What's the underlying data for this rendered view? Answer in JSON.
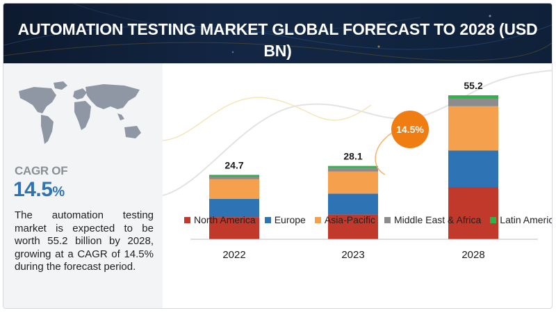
{
  "header": {
    "title": "AUTOMATION TESTING MARKET GLOBAL FORECAST TO 2028 (USD BN)"
  },
  "sidebar": {
    "cagr_label": "CAGR OF",
    "cagr_value": "14.5",
    "cagr_unit": "%",
    "summary": "The automation testing market is expected to be worth 55.2 billion by 2028, growing at a CAGR of 14.5% during the forecast period."
  },
  "chart_data": {
    "type": "bar",
    "stacked": true,
    "categories": [
      "2022",
      "2023",
      "2028"
    ],
    "totals": [
      "24.7",
      "28.1",
      "55.2"
    ],
    "series": [
      {
        "name": "North America",
        "color": "#c0392b",
        "values": [
          8.5,
          9.5,
          20.0
        ]
      },
      {
        "name": "Europe",
        "color": "#2e74b5",
        "values": [
          7.0,
          8.0,
          14.0
        ]
      },
      {
        "name": "Asia-Pacific",
        "color": "#f4a04d",
        "values": [
          7.5,
          8.5,
          17.0
        ]
      },
      {
        "name": "Middle East & Africa",
        "color": "#8c8c8c",
        "values": [
          1.0,
          1.3,
          3.0
        ]
      },
      {
        "name": "Latin America",
        "color": "#2db34a",
        "values": [
          0.7,
          0.8,
          1.2
        ]
      }
    ],
    "annotation": {
      "text": "14.5%",
      "color": "#f07d12"
    },
    "ylim": [
      0,
      55.2
    ],
    "grid": false,
    "legend_position": "bottom"
  }
}
